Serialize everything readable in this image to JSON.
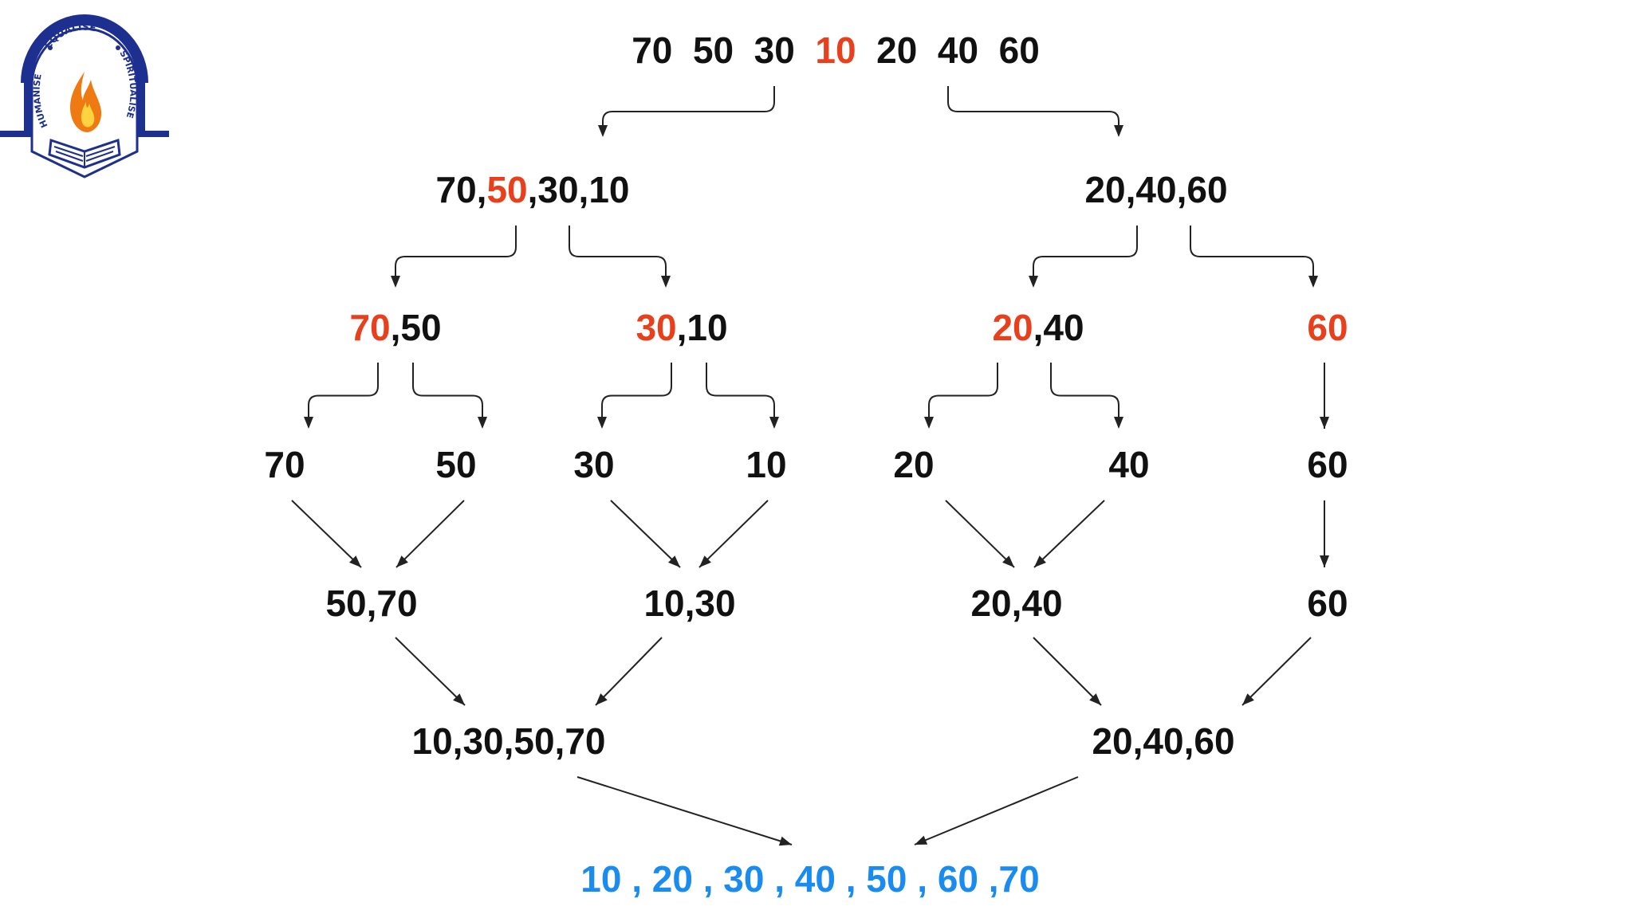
{
  "logo": {
    "arc_top": "EQUALISE",
    "arc_left": "HUMANISE",
    "arc_right": "SPIRITUALISE",
    "colors": {
      "navy": "#1d2f8f",
      "flame_outer": "#f07a12",
      "flame_inner": "#ffd23f"
    }
  },
  "colors": {
    "text": "#111111",
    "pivot": "#e8401c",
    "result": "#1a8cf0",
    "arrow": "#222222"
  },
  "nodes": {
    "root": [
      {
        "t": "70",
        "c": "n"
      },
      {
        "t": "  50",
        "c": "n"
      },
      {
        "t": "  30",
        "c": "n"
      },
      {
        "t": "  10",
        "c": "r"
      },
      {
        "t": "  20",
        "c": "n"
      },
      {
        "t": "  40",
        "c": "n"
      },
      {
        "t": "  60",
        "c": "n"
      }
    ],
    "l1_left": [
      {
        "t": "70,",
        "c": "n"
      },
      {
        "t": "50",
        "c": "r"
      },
      {
        "t": ",30,10",
        "c": "n"
      }
    ],
    "l1_right": [
      {
        "t": "20,40,60",
        "c": "n"
      }
    ],
    "l2_a": [
      {
        "t": "70",
        "c": "r"
      },
      {
        "t": ",50",
        "c": "n"
      }
    ],
    "l2_b": [
      {
        "t": "30",
        "c": "r"
      },
      {
        "t": ",10",
        "c": "n"
      }
    ],
    "l2_c": [
      {
        "t": "20",
        "c": "r"
      },
      {
        "t": ",40",
        "c": "n"
      }
    ],
    "l2_d": [
      {
        "t": "60",
        "c": "r"
      }
    ],
    "l3_70": [
      {
        "t": "70",
        "c": "n"
      }
    ],
    "l3_50": [
      {
        "t": "50",
        "c": "n"
      }
    ],
    "l3_30": [
      {
        "t": "30",
        "c": "n"
      }
    ],
    "l3_10": [
      {
        "t": "10",
        "c": "n"
      }
    ],
    "l3_20": [
      {
        "t": "20",
        "c": "n"
      }
    ],
    "l3_40": [
      {
        "t": "40",
        "c": "n"
      }
    ],
    "l3_60": [
      {
        "t": "60",
        "c": "n"
      }
    ],
    "m1_a": [
      {
        "t": "50,70",
        "c": "n"
      }
    ],
    "m1_b": [
      {
        "t": "10,30",
        "c": "n"
      }
    ],
    "m1_c": [
      {
        "t": "20,40",
        "c": "n"
      }
    ],
    "m1_d": [
      {
        "t": "60",
        "c": "n"
      }
    ],
    "m2_left": [
      {
        "t": "10,30,50,70",
        "c": "n"
      }
    ],
    "m2_right": [
      {
        "t": "20,40,60",
        "c": "n"
      }
    ],
    "result": [
      {
        "t": "10 , 20 , 30 , 40 , 50 , 60 ,70",
        "c": "b"
      }
    ]
  }
}
